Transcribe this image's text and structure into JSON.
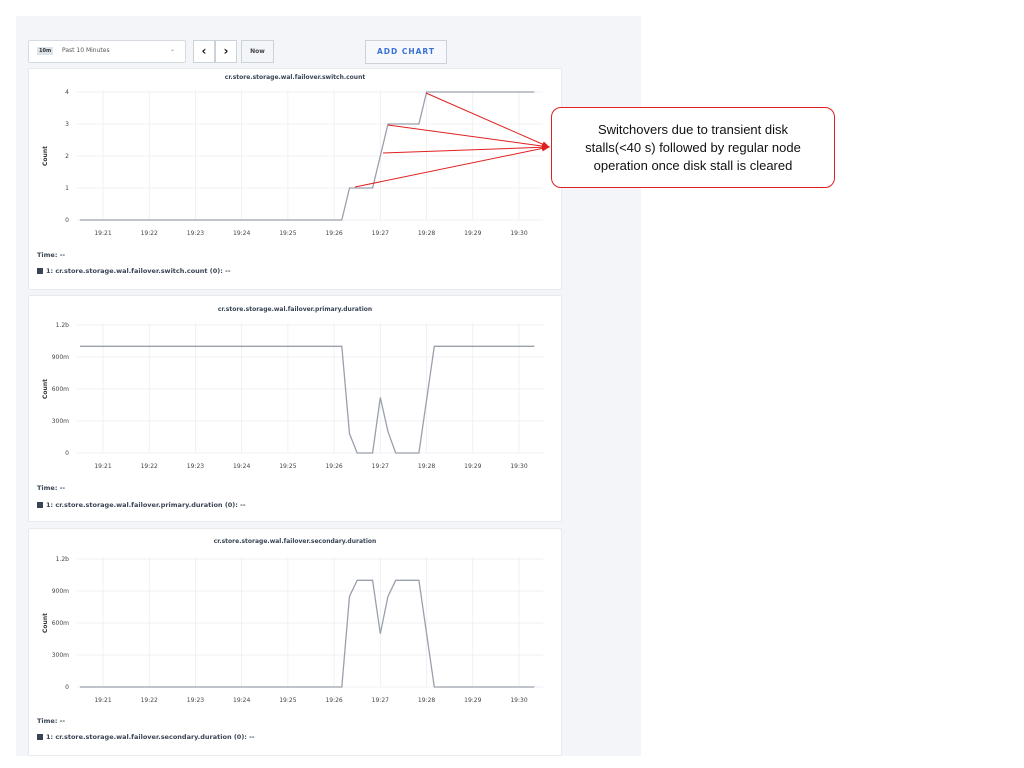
{
  "toolbar": {
    "range_badge": "10m",
    "range_label": "Past 10 Minutes",
    "prev_icon": "chevron-left-icon",
    "next_icon": "chevron-right-icon",
    "now_label": "Now",
    "add_chart_label": "ADD CHART"
  },
  "annotation": {
    "text": "Switchovers due to transient disk stalls(<40 s) followed by regular node operation once disk stall is cleared",
    "color": "#e02020"
  },
  "chart_data": [
    {
      "type": "line",
      "title": "cr.store.storage.wal.failover.switch.count",
      "ylabel": "Count",
      "x_ticks": [
        "19:21",
        "19:22",
        "19:23",
        "19:24",
        "19:25",
        "19:26",
        "19:27",
        "19:28",
        "19:29",
        "19:30"
      ],
      "y_ticks": [
        "0",
        "1",
        "2",
        "3",
        "4"
      ],
      "y_tick_values": [
        0,
        1,
        2,
        3,
        4
      ],
      "ylim": [
        0,
        4
      ],
      "grid": true,
      "series": [
        {
          "x": [
            "19:20:30",
            "19:26:10",
            "19:26:20",
            "19:26:50",
            "19:27:10",
            "19:27:50",
            "19:28:00",
            "19:30:20"
          ],
          "y": [
            0,
            0,
            1,
            1,
            3,
            3,
            4,
            4
          ]
        }
      ],
      "time_label": "Time:  --",
      "legend": "1: cr.store.storage.wal.failover.switch.count (0):  --",
      "line_color": "#9aa0ab"
    },
    {
      "type": "line",
      "title": "cr.store.storage.wal.failover.primary.duration",
      "ylabel": "Count",
      "x_ticks": [
        "19:21",
        "19:22",
        "19:23",
        "19:24",
        "19:25",
        "19:26",
        "19:27",
        "19:28",
        "19:29",
        "19:30"
      ],
      "y_ticks": [
        "0",
        "300m",
        "600m",
        "900m",
        "1.2b"
      ],
      "y_tick_values": [
        0,
        300000000,
        600000000,
        900000000,
        1200000000
      ],
      "ylim": [
        0,
        1200000000
      ],
      "grid": true,
      "series": [
        {
          "x": [
            "19:20:30",
            "19:26:10",
            "19:26:20",
            "19:26:30",
            "19:26:50",
            "19:27:00",
            "19:27:10",
            "19:27:20",
            "19:27:50",
            "19:28:00",
            "19:28:10",
            "19:30:20"
          ],
          "y": [
            1000000000,
            1000000000,
            180000000,
            0,
            0,
            520000000,
            200000000,
            0,
            0,
            500000000,
            1000000000,
            1000000000
          ]
        }
      ],
      "time_label": "Time:  --",
      "legend": "1: cr.store.storage.wal.failover.primary.duration (0):  --",
      "line_color": "#9aa0ab"
    },
    {
      "type": "line",
      "title": "cr.store.storage.wal.failover.secondary.duration",
      "ylabel": "Count",
      "x_ticks": [
        "19:21",
        "19:22",
        "19:23",
        "19:24",
        "19:25",
        "19:26",
        "19:27",
        "19:28",
        "19:29",
        "19:30"
      ],
      "y_ticks": [
        "0",
        "300m",
        "600m",
        "900m",
        "1.2b"
      ],
      "y_tick_values": [
        0,
        300000000,
        600000000,
        900000000,
        1200000000
      ],
      "ylim": [
        0,
        1200000000
      ],
      "grid": true,
      "series": [
        {
          "x": [
            "19:20:30",
            "19:26:10",
            "19:26:20",
            "19:26:30",
            "19:26:50",
            "19:27:00",
            "19:27:10",
            "19:27:20",
            "19:27:50",
            "19:28:00",
            "19:28:10",
            "19:30:20"
          ],
          "y": [
            0,
            0,
            850000000,
            1000000000,
            1000000000,
            500000000,
            850000000,
            1000000000,
            1000000000,
            500000000,
            0,
            0
          ]
        }
      ],
      "time_label": "Time:  --",
      "legend": "1: cr.store.storage.wal.failover.secondary.duration (0):  --",
      "line_color": "#9aa0ab"
    }
  ]
}
